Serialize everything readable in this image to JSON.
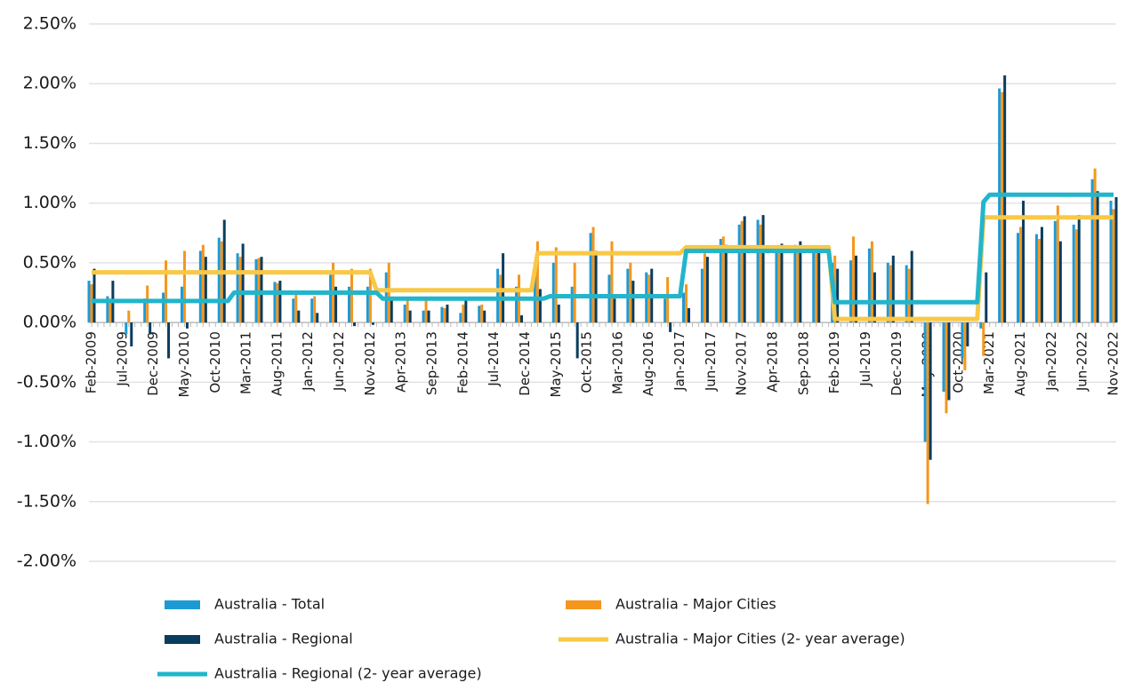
{
  "chart_data": {
    "type": "bar",
    "ylim": [
      -2,
      2.5
    ],
    "yticks": [
      {
        "value": -2,
        "label": "-2.00%"
      },
      {
        "value": -1.5,
        "label": "-1.50%"
      },
      {
        "value": -1,
        "label": "-1.00%"
      },
      {
        "value": -0.5,
        "label": "-0.50%"
      },
      {
        "value": 0,
        "label": "0.00%"
      },
      {
        "value": 0.5,
        "label": "0.50%"
      },
      {
        "value": 1,
        "label": "1.00%"
      },
      {
        "value": 1.5,
        "label": "1.50%"
      },
      {
        "value": 2,
        "label": "2.00%"
      },
      {
        "value": 2.5,
        "label": "2.50%"
      }
    ],
    "grid": true,
    "categories": [
      "Feb-2009",
      null,
      null,
      null,
      null,
      "Jul-2009",
      null,
      null,
      null,
      null,
      "Dec-2009",
      null,
      null,
      null,
      null,
      "May-2010",
      null,
      null,
      null,
      null,
      "Oct-2010",
      null,
      null,
      null,
      null,
      "Mar-2011",
      null,
      null,
      null,
      null,
      "Aug-2011",
      null,
      null,
      null,
      null,
      "Jan-2012",
      null,
      null,
      null,
      null,
      "Jun-2012",
      null,
      null,
      null,
      null,
      "Nov-2012",
      null,
      null,
      null,
      null,
      "Apr-2013",
      null,
      null,
      null,
      null,
      "Sep-2013",
      null,
      null,
      null,
      null,
      "Feb-2014",
      null,
      null,
      null,
      null,
      "Jul-2014",
      null,
      null,
      null,
      null,
      "Dec-2014",
      null,
      null,
      null,
      null,
      "May-2015",
      null,
      null,
      null,
      null,
      "Oct-2015",
      null,
      null,
      null,
      null,
      "Mar-2016",
      null,
      null,
      null,
      null,
      "Aug-2016",
      null,
      null,
      null,
      null,
      "Jan-2017",
      null,
      null,
      null,
      null,
      "Jun-2017",
      null,
      null,
      null,
      null,
      "Nov-2017",
      null,
      null,
      null,
      null,
      "Apr-2018",
      null,
      null,
      null,
      null,
      "Sep-2018",
      null,
      null,
      null,
      null,
      "Feb-2019",
      null,
      null,
      null,
      null,
      "Jul-2019",
      null,
      null,
      null,
      null,
      "Dec-2019",
      null,
      null,
      null,
      null,
      "May-2020",
      null,
      null,
      null,
      null,
      "Oct-2020",
      null,
      null,
      null,
      null,
      "Mar-2021",
      null,
      null,
      null,
      null,
      "Aug-2021",
      null,
      null,
      null,
      null,
      "Jan-2022",
      null,
      null,
      null,
      null,
      "Jun-2022",
      null,
      null,
      null,
      null,
      "Nov-2022"
    ],
    "series": [
      {
        "name": "Australia - Total",
        "type": "bar",
        "color": "#1d9ad6",
        "values": [
          0.35,
          null,
          null,
          0.22,
          null,
          null,
          -0.1,
          null,
          null,
          0.2,
          null,
          null,
          0.25,
          null,
          null,
          0.3,
          null,
          null,
          0.6,
          null,
          null,
          0.71,
          null,
          null,
          0.58,
          null,
          null,
          0.53,
          null,
          null,
          0.34,
          null,
          null,
          0.2,
          null,
          null,
          0.2,
          null,
          null,
          0.4,
          null,
          null,
          0.3,
          null,
          null,
          0.3,
          null,
          null,
          0.42,
          null,
          null,
          0.15,
          null,
          null,
          0.1,
          null,
          null,
          0.13,
          null,
          null,
          0.08,
          null,
          null,
          0.14,
          null,
          null,
          0.45,
          null,
          null,
          0.3,
          null,
          null,
          0.5,
          null,
          null,
          0.5,
          null,
          null,
          0.3,
          null,
          null,
          0.75,
          null,
          null,
          0.4,
          null,
          null,
          0.45,
          null,
          null,
          0.42,
          null,
          null,
          0.2,
          null,
          null,
          0.25,
          null,
          null,
          0.45,
          null,
          null,
          0.7,
          null,
          null,
          0.82,
          null,
          null,
          0.86,
          null,
          null,
          0.6,
          null,
          null,
          0.65,
          null,
          null,
          0.6,
          null,
          null,
          0.5,
          null,
          null,
          0.52,
          null,
          null,
          0.62,
          null,
          null,
          0.5,
          null,
          null,
          0.48,
          null,
          null,
          -1.0,
          null,
          null,
          -0.58,
          null,
          null,
          -0.3,
          null,
          null,
          -0.05,
          null,
          null,
          1.96,
          null,
          null,
          0.75,
          null,
          null,
          0.74,
          null,
          null,
          0.85,
          null,
          null,
          0.82,
          null,
          null,
          1.2,
          null,
          null,
          1.02
        ]
      },
      {
        "name": "Australia - Major Cities",
        "type": "bar",
        "color": "#f5961d",
        "values": [
          0.32,
          null,
          null,
          0.2,
          null,
          null,
          0.1,
          null,
          null,
          0.31,
          null,
          null,
          0.52,
          null,
          null,
          0.6,
          null,
          null,
          0.65,
          null,
          null,
          0.68,
          null,
          null,
          0.55,
          null,
          null,
          0.54,
          null,
          null,
          0.33,
          null,
          null,
          0.25,
          null,
          null,
          0.22,
          null,
          null,
          0.5,
          null,
          null,
          0.45,
          null,
          null,
          0.45,
          null,
          null,
          0.5,
          null,
          null,
          0.2,
          null,
          null,
          0.2,
          null,
          null,
          0.12,
          null,
          null,
          0.15,
          null,
          null,
          0.15,
          null,
          null,
          0.4,
          null,
          null,
          0.4,
          null,
          null,
          0.68,
          null,
          null,
          0.63,
          null,
          null,
          0.5,
          null,
          null,
          0.8,
          null,
          null,
          0.68,
          null,
          null,
          0.5,
          null,
          null,
          0.4,
          null,
          null,
          0.38,
          null,
          null,
          0.32,
          null,
          null,
          0.58,
          null,
          null,
          0.72,
          null,
          null,
          0.85,
          null,
          null,
          0.82,
          null,
          null,
          0.6,
          null,
          null,
          0.6,
          null,
          null,
          0.58,
          null,
          null,
          0.56,
          null,
          null,
          0.72,
          null,
          null,
          0.68,
          null,
          null,
          0.48,
          null,
          null,
          0.45,
          null,
          null,
          -1.52,
          null,
          null,
          -0.76,
          null,
          null,
          -0.4,
          null,
          null,
          -0.28,
          null,
          null,
          1.93,
          null,
          null,
          0.8,
          null,
          null,
          0.7,
          null,
          null,
          0.98,
          null,
          null,
          0.78,
          null,
          null,
          1.29,
          null,
          null,
          0.95
        ]
      },
      {
        "name": "Australia - Regional",
        "type": "bar",
        "color": "#0b3c5d",
        "values": [
          0.45,
          null,
          null,
          0.35,
          null,
          null,
          -0.2,
          null,
          null,
          -0.1,
          null,
          null,
          -0.3,
          null,
          null,
          -0.05,
          null,
          null,
          0.55,
          null,
          null,
          0.86,
          null,
          null,
          0.66,
          null,
          null,
          0.55,
          null,
          null,
          0.35,
          null,
          null,
          0.1,
          null,
          null,
          0.08,
          null,
          null,
          0.3,
          null,
          null,
          -0.03,
          null,
          null,
          -0.02,
          null,
          null,
          0.2,
          null,
          null,
          0.1,
          null,
          null,
          0.1,
          null,
          null,
          0.15,
          null,
          null,
          0.2,
          null,
          null,
          0.1,
          null,
          null,
          0.58,
          null,
          null,
          0.06,
          null,
          null,
          0.28,
          null,
          null,
          0.15,
          null,
          null,
          -0.3,
          null,
          null,
          0.6,
          null,
          null,
          0.2,
          null,
          null,
          0.35,
          null,
          null,
          0.45,
          null,
          null,
          -0.08,
          null,
          null,
          0.12,
          null,
          null,
          0.55,
          null,
          null,
          0.65,
          null,
          null,
          0.89,
          null,
          null,
          0.9,
          null,
          null,
          0.66,
          null,
          null,
          0.68,
          null,
          null,
          0.62,
          null,
          null,
          0.45,
          null,
          null,
          0.56,
          null,
          null,
          0.42,
          null,
          null,
          0.56,
          null,
          null,
          0.6,
          null,
          null,
          -1.15,
          null,
          null,
          -0.65,
          null,
          null,
          -0.2,
          null,
          null,
          0.42,
          null,
          null,
          2.07,
          null,
          null,
          1.02,
          null,
          null,
          0.8,
          null,
          null,
          0.68,
          null,
          null,
          0.9,
          null,
          null,
          1.1,
          null,
          null,
          1.05
        ]
      },
      {
        "name": "Australia - Major Cities (2- year average)",
        "type": "line",
        "color": "#f9c846",
        "values": [
          0.42,
          0.42,
          0.42,
          0.42,
          0.42,
          0.42,
          0.42,
          0.42,
          0.42,
          0.42,
          0.42,
          0.42,
          0.42,
          0.42,
          0.42,
          0.42,
          0.42,
          0.42,
          0.42,
          0.42,
          0.42,
          0.42,
          0.42,
          0.42,
          0.42,
          0.42,
          0.42,
          0.42,
          0.42,
          0.42,
          0.42,
          0.42,
          0.42,
          0.42,
          0.42,
          0.42,
          0.42,
          0.42,
          0.42,
          0.42,
          0.42,
          0.42,
          0.42,
          0.42,
          0.42,
          0.42,
          0.27,
          0.27,
          0.27,
          0.27,
          0.27,
          0.27,
          0.27,
          0.27,
          0.27,
          0.27,
          0.27,
          0.27,
          0.27,
          0.27,
          0.27,
          0.27,
          0.27,
          0.27,
          0.27,
          0.27,
          0.27,
          0.27,
          0.27,
          0.27,
          0.27,
          0.27,
          0.58,
          0.58,
          0.58,
          0.58,
          0.58,
          0.58,
          0.58,
          0.58,
          0.58,
          0.58,
          0.58,
          0.58,
          0.58,
          0.58,
          0.58,
          0.58,
          0.58,
          0.58,
          0.58,
          0.58,
          0.58,
          0.58,
          0.58,
          0.58,
          0.63,
          0.63,
          0.63,
          0.63,
          0.63,
          0.63,
          0.63,
          0.63,
          0.63,
          0.63,
          0.63,
          0.63,
          0.63,
          0.63,
          0.63,
          0.63,
          0.63,
          0.63,
          0.63,
          0.63,
          0.63,
          0.63,
          0.63,
          0.63,
          0.03,
          0.03,
          0.03,
          0.03,
          0.03,
          0.03,
          0.03,
          0.03,
          0.03,
          0.03,
          0.03,
          0.03,
          0.03,
          0.03,
          0.03,
          0.03,
          0.03,
          0.03,
          0.03,
          0.03,
          0.03,
          0.03,
          0.03,
          0.03,
          0.88,
          0.88,
          0.88,
          0.88,
          0.88,
          0.88,
          0.88,
          0.88,
          0.88,
          0.88,
          0.88,
          0.88,
          0.88,
          0.88,
          0.88,
          0.88,
          0.88,
          0.88,
          0.88,
          0.88,
          0.88,
          0.88
        ]
      },
      {
        "name": "Australia - Regional (2- year average)",
        "type": "line",
        "color": "#22b5cc",
        "values": [
          0.18,
          0.18,
          0.18,
          0.18,
          0.18,
          0.18,
          0.18,
          0.18,
          0.18,
          0.18,
          0.18,
          0.18,
          0.18,
          0.18,
          0.18,
          0.18,
          0.18,
          0.18,
          0.18,
          0.18,
          0.18,
          0.18,
          0.18,
          0.25,
          0.25,
          0.25,
          0.25,
          0.25,
          0.25,
          0.25,
          0.25,
          0.25,
          0.25,
          0.25,
          0.25,
          0.25,
          0.25,
          0.25,
          0.25,
          0.25,
          0.25,
          0.25,
          0.25,
          0.25,
          0.25,
          0.25,
          0.25,
          0.2,
          0.2,
          0.2,
          0.2,
          0.2,
          0.2,
          0.2,
          0.2,
          0.2,
          0.2,
          0.2,
          0.2,
          0.2,
          0.2,
          0.2,
          0.2,
          0.2,
          0.2,
          0.2,
          0.2,
          0.2,
          0.2,
          0.2,
          0.2,
          0.2,
          0.2,
          0.2,
          0.22,
          0.22,
          0.22,
          0.22,
          0.22,
          0.22,
          0.22,
          0.22,
          0.22,
          0.22,
          0.22,
          0.22,
          0.22,
          0.22,
          0.22,
          0.22,
          0.22,
          0.22,
          0.22,
          0.22,
          0.22,
          0.22,
          0.6,
          0.6,
          0.6,
          0.6,
          0.6,
          0.6,
          0.6,
          0.6,
          0.6,
          0.6,
          0.6,
          0.6,
          0.6,
          0.6,
          0.6,
          0.6,
          0.6,
          0.6,
          0.6,
          0.6,
          0.6,
          0.6,
          0.6,
          0.6,
          0.17,
          0.17,
          0.17,
          0.17,
          0.17,
          0.17,
          0.17,
          0.17,
          0.17,
          0.17,
          0.17,
          0.17,
          0.17,
          0.17,
          0.17,
          0.17,
          0.17,
          0.17,
          0.17,
          0.17,
          0.17,
          0.17,
          0.17,
          0.17,
          1.01,
          1.07,
          1.07,
          1.07,
          1.07,
          1.07,
          1.07,
          1.07,
          1.07,
          1.07,
          1.07,
          1.07,
          1.07,
          1.07,
          1.07,
          1.07,
          1.07,
          1.07,
          1.07,
          1.07,
          1.07,
          1.07
        ]
      }
    ]
  }
}
